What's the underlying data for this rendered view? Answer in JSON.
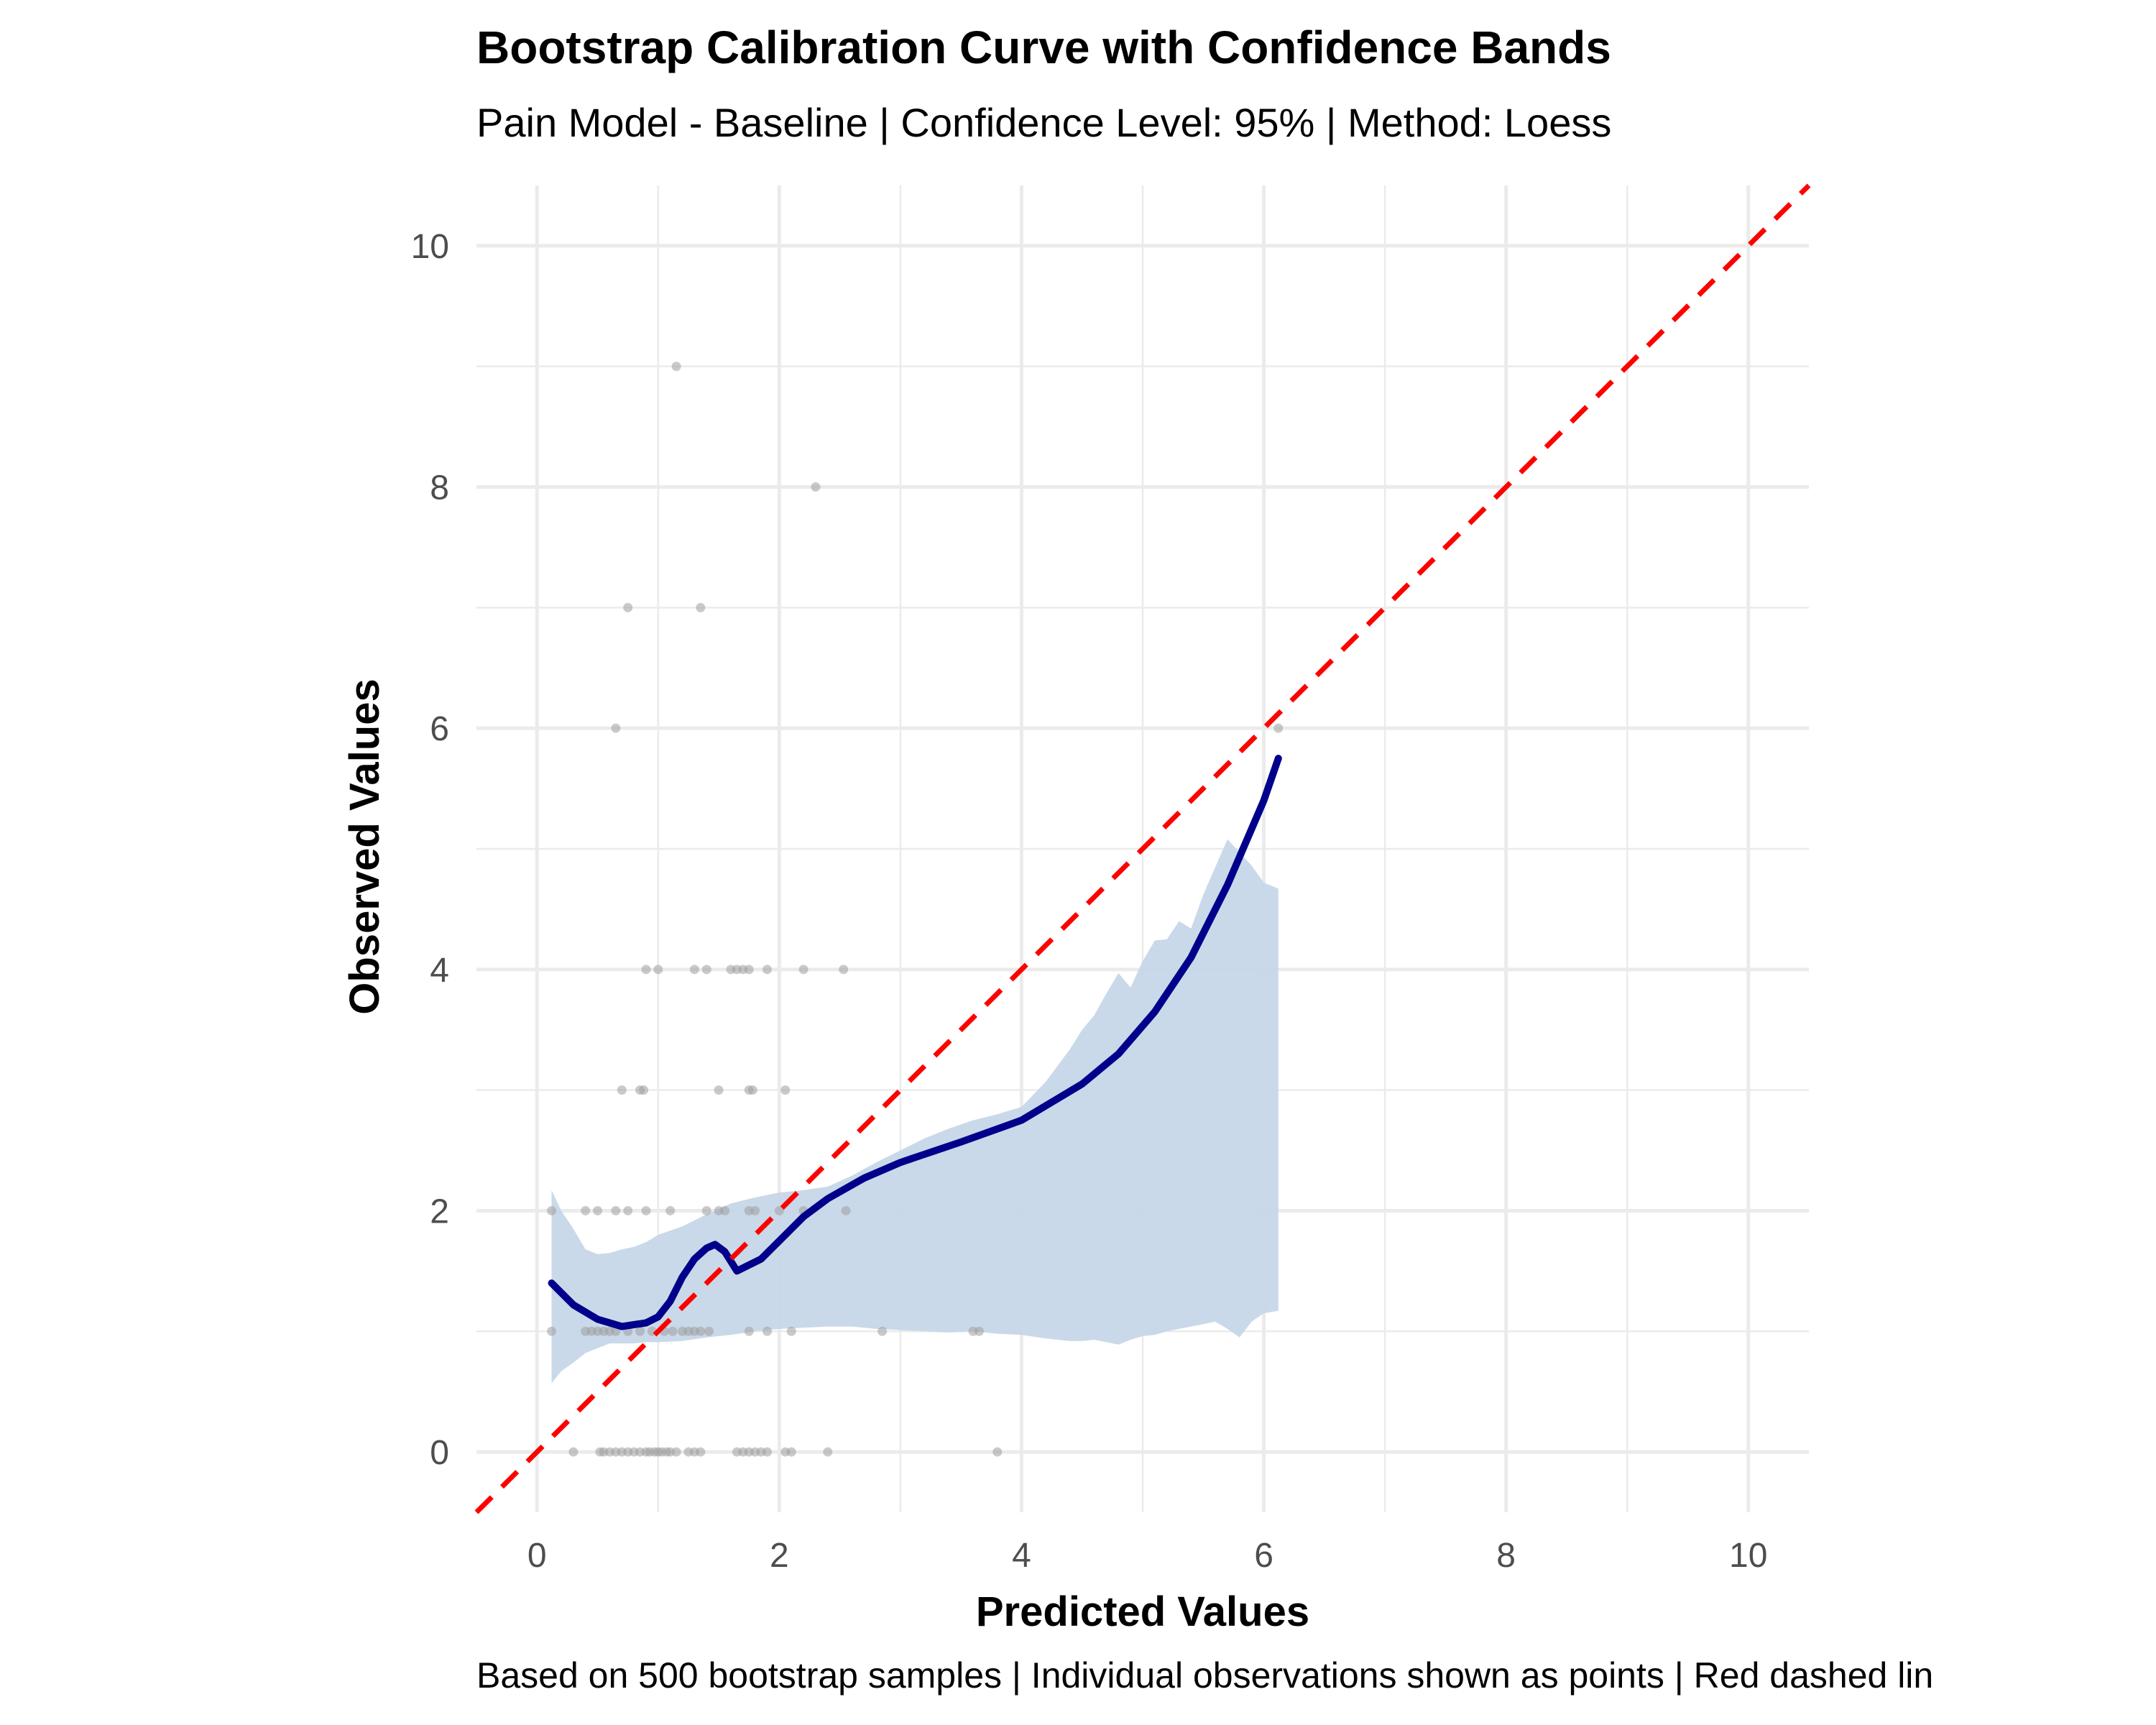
{
  "chart_data": {
    "type": "line",
    "title": "Bootstrap Calibration Curve with Confidence Bands",
    "subtitle": "Pain Model - Baseline | Confidence Level: 95% | Method: Loess",
    "caption": "Based on 500 bootstrap samples | Individual observations shown as points | Red dashed lin",
    "xlabel": "Predicted Values",
    "ylabel": "Observed Values",
    "xlim": [
      -0.5,
      10.5
    ],
    "ylim": [
      -0.5,
      10.5
    ],
    "x_ticks": [
      0,
      2,
      4,
      6,
      8,
      10
    ],
    "y_ticks": [
      0,
      2,
      4,
      6,
      8,
      10
    ],
    "x_tick_labels": [
      "0",
      "2",
      "4",
      "6",
      "8",
      "10"
    ],
    "y_tick_labels": [
      "0",
      "2",
      "4",
      "6",
      "8",
      "10"
    ],
    "grid": true,
    "colors": {
      "curve": "#00008B",
      "band": "#C6D7E8",
      "reference": "#FF0000",
      "points": "#9E9E9E",
      "grid": "#EBEBEB"
    },
    "series": [
      {
        "kind": "reference-line",
        "style": "dashed",
        "x": [
          -0.5,
          10.5
        ],
        "y": [
          -0.5,
          10.5
        ]
      },
      {
        "kind": "calibration-curve",
        "x": [
          0.12,
          0.3,
          0.5,
          0.7,
          0.9,
          1.0,
          1.1,
          1.2,
          1.3,
          1.4,
          1.47,
          1.55,
          1.65,
          1.75,
          1.85,
          2.0,
          2.2,
          2.4,
          2.7,
          3.0,
          3.5,
          4.0,
          4.5,
          4.8,
          5.1,
          5.4,
          5.7,
          6.0,
          6.12
        ],
        "y": [
          1.4,
          1.22,
          1.1,
          1.04,
          1.07,
          1.12,
          1.25,
          1.45,
          1.6,
          1.69,
          1.72,
          1.66,
          1.5,
          1.55,
          1.6,
          1.75,
          1.95,
          2.1,
          2.27,
          2.4,
          2.57,
          2.75,
          3.05,
          3.3,
          3.65,
          4.1,
          4.7,
          5.4,
          5.75
        ]
      },
      {
        "kind": "confidence-band",
        "x": [
          0.12,
          0.2,
          0.3,
          0.4,
          0.5,
          0.6,
          0.7,
          0.8,
          0.9,
          1.0,
          1.2,
          1.4,
          1.6,
          1.8,
          2.0,
          2.2,
          2.4,
          2.6,
          2.8,
          3.0,
          3.2,
          3.4,
          3.6,
          3.8,
          4.0,
          4.2,
          4.4,
          4.5,
          4.6,
          4.7,
          4.8,
          4.9,
          5.0,
          5.1,
          5.2,
          5.3,
          5.4,
          5.5,
          5.6,
          5.7,
          5.8,
          5.9,
          6.0,
          6.12
        ],
        "lower": [
          0.57,
          0.67,
          0.74,
          0.82,
          0.86,
          0.9,
          0.9,
          0.9,
          0.91,
          0.91,
          0.92,
          0.95,
          0.97,
          1.0,
          1.02,
          1.03,
          1.04,
          1.04,
          1.02,
          1.01,
          1.0,
          0.99,
          1.0,
          0.98,
          0.97,
          0.94,
          0.92,
          0.92,
          0.93,
          0.91,
          0.89,
          0.93,
          0.96,
          0.97,
          1.0,
          1.02,
          1.04,
          1.06,
          1.08,
          1.02,
          0.95,
          1.08,
          1.15,
          1.17
        ],
        "upper": [
          2.17,
          2.0,
          1.85,
          1.68,
          1.64,
          1.65,
          1.68,
          1.7,
          1.74,
          1.8,
          1.87,
          1.97,
          2.06,
          2.11,
          2.15,
          2.17,
          2.2,
          2.29,
          2.4,
          2.5,
          2.6,
          2.68,
          2.75,
          2.8,
          2.86,
          3.07,
          3.34,
          3.5,
          3.62,
          3.8,
          3.97,
          3.85,
          4.07,
          4.24,
          4.25,
          4.4,
          4.34,
          4.62,
          4.85,
          5.08,
          4.97,
          4.86,
          4.72,
          4.67
        ]
      },
      {
        "kind": "observations",
        "x": [
          0.12,
          0.52,
          0.55,
          0.6,
          0.65,
          0.7,
          0.75,
          0.8,
          0.85,
          0.9,
          0.93,
          0.97,
          1.0,
          1.03,
          1.07,
          1.1,
          1.15,
          1.25,
          1.3,
          1.35,
          1.65,
          1.7,
          1.75,
          1.8,
          1.85,
          1.9,
          2.05,
          2.1,
          2.4,
          3.8,
          0.3,
          0.4,
          0.45,
          0.5,
          0.55,
          0.6,
          0.65,
          0.75,
          0.85,
          0.95,
          1.05,
          1.12,
          1.2,
          1.25,
          1.3,
          1.35,
          1.42,
          1.75,
          1.9,
          2.1,
          2.85,
          3.6,
          3.65,
          0.12,
          0.4,
          0.5,
          0.65,
          0.75,
          0.9,
          1.1,
          1.4,
          1.5,
          1.55,
          1.75,
          1.8,
          2.0,
          2.2,
          2.55,
          0.7,
          0.85,
          0.88,
          1.5,
          1.75,
          1.78,
          2.05,
          0.9,
          1.0,
          1.3,
          1.4,
          1.6,
          1.65,
          1.7,
          1.75,
          1.9,
          2.2,
          2.53,
          6.12,
          0.65,
          0.75,
          1.35,
          2.3,
          1.15
        ],
        "y": [
          2,
          0,
          0,
          0,
          0,
          0,
          0,
          0,
          0,
          0,
          0,
          0,
          0,
          0,
          0,
          0,
          0,
          0,
          0,
          0,
          0,
          0,
          0,
          0,
          0,
          0,
          0,
          0,
          0,
          0,
          0,
          1,
          1,
          1,
          1,
          1,
          1,
          1,
          1,
          1,
          1,
          1,
          1,
          1,
          1,
          1,
          1,
          1,
          1,
          1,
          1,
          1,
          1,
          1,
          2,
          2,
          2,
          2,
          2,
          2,
          2,
          2,
          2,
          2,
          2,
          2,
          2,
          2,
          3,
          3,
          3,
          3,
          3,
          3,
          3,
          4,
          4,
          4,
          4,
          4,
          4,
          4,
          4,
          4,
          4,
          4,
          6,
          6,
          7,
          7,
          8,
          9
        ]
      }
    ]
  }
}
